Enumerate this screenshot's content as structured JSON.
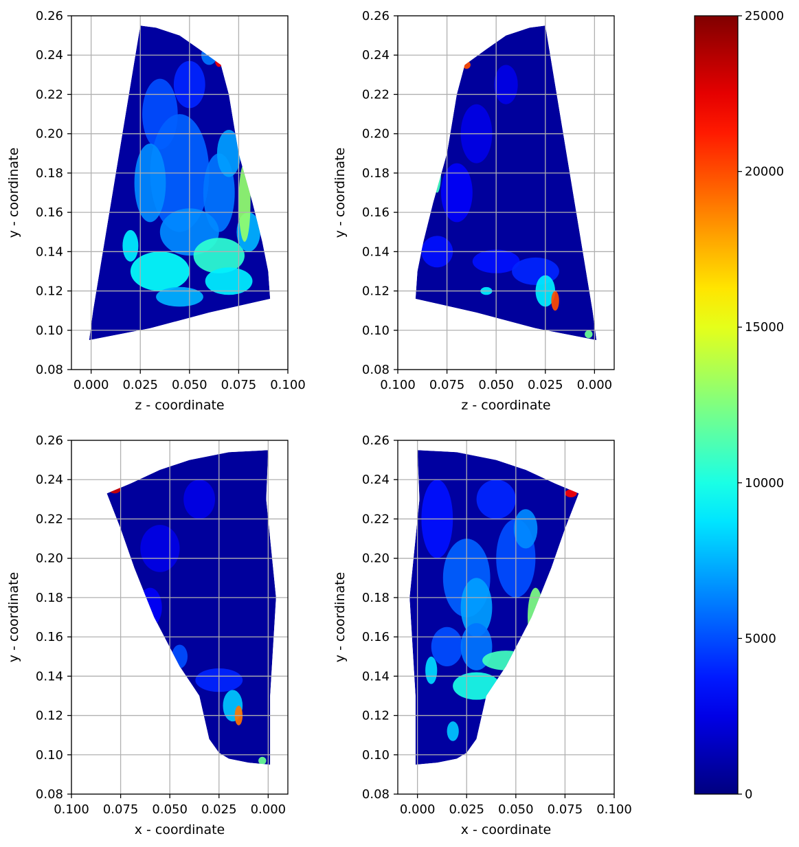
{
  "chart_data": [
    {
      "type": "heatmap",
      "panel": "top-left",
      "xlabel": "z - coordinate",
      "ylabel": "y - coordinate",
      "xlim": [
        -0.01,
        0.1
      ],
      "ylim": [
        0.08,
        0.26
      ],
      "x_ticks": [
        "0.000",
        "0.025",
        "0.050",
        "0.075",
        "0.100"
      ],
      "x_tick_values": [
        0.0,
        0.025,
        0.05,
        0.075,
        0.1
      ],
      "y_ticks": [
        "0.08",
        "0.10",
        "0.12",
        "0.14",
        "0.16",
        "0.18",
        "0.20",
        "0.22",
        "0.24",
        "0.26"
      ],
      "y_tick_values": [
        0.08,
        0.1,
        0.12,
        0.14,
        0.16,
        0.18,
        0.2,
        0.22,
        0.24,
        0.26
      ],
      "grid": true,
      "outline": [
        [
          -0.001,
          0.095
        ],
        [
          0.001,
          0.11
        ],
        [
          0.025,
          0.255
        ],
        [
          0.033,
          0.254
        ],
        [
          0.045,
          0.25
        ],
        [
          0.055,
          0.243
        ],
        [
          0.066,
          0.235
        ],
        [
          0.07,
          0.22
        ],
        [
          0.075,
          0.19
        ],
        [
          0.082,
          0.165
        ],
        [
          0.087,
          0.145
        ],
        [
          0.09,
          0.13
        ],
        [
          0.091,
          0.116
        ],
        [
          0.06,
          0.109
        ],
        [
          0.03,
          0.101
        ],
        [
          -0.001,
          0.095
        ]
      ],
      "background_value": 800,
      "regions": [
        {
          "cx": 0.035,
          "cy": 0.21,
          "rx": 0.009,
          "ry": 0.018,
          "value": 5000
        },
        {
          "cx": 0.05,
          "cy": 0.225,
          "rx": 0.008,
          "ry": 0.012,
          "value": 4000
        },
        {
          "cx": 0.045,
          "cy": 0.18,
          "rx": 0.015,
          "ry": 0.03,
          "value": 5500
        },
        {
          "cx": 0.03,
          "cy": 0.175,
          "rx": 0.008,
          "ry": 0.02,
          "value": 6500
        },
        {
          "cx": 0.065,
          "cy": 0.17,
          "rx": 0.008,
          "ry": 0.02,
          "value": 6000
        },
        {
          "cx": 0.07,
          "cy": 0.19,
          "rx": 0.006,
          "ry": 0.012,
          "value": 7000
        },
        {
          "cx": 0.05,
          "cy": 0.15,
          "rx": 0.015,
          "ry": 0.012,
          "value": 6500
        },
        {
          "cx": 0.02,
          "cy": 0.143,
          "rx": 0.004,
          "ry": 0.008,
          "value": 9000
        },
        {
          "cx": 0.035,
          "cy": 0.13,
          "rx": 0.015,
          "ry": 0.01,
          "value": 9500
        },
        {
          "cx": 0.065,
          "cy": 0.138,
          "rx": 0.013,
          "ry": 0.009,
          "value": 10500
        },
        {
          "cx": 0.07,
          "cy": 0.125,
          "rx": 0.012,
          "ry": 0.007,
          "value": 9000
        },
        {
          "cx": 0.045,
          "cy": 0.117,
          "rx": 0.012,
          "ry": 0.005,
          "value": 7500
        },
        {
          "cx": 0.08,
          "cy": 0.15,
          "rx": 0.006,
          "ry": 0.01,
          "value": 7500
        },
        {
          "cx": 0.078,
          "cy": 0.165,
          "rx": 0.003,
          "ry": 0.02,
          "value": 13000
        },
        {
          "cx": 0.065,
          "cy": 0.237,
          "rx": 0.002,
          "ry": 0.003,
          "value": 22000
        },
        {
          "cx": 0.06,
          "cy": 0.24,
          "rx": 0.004,
          "ry": 0.005,
          "value": 6000
        }
      ]
    },
    {
      "type": "heatmap",
      "panel": "top-right",
      "xlabel": "z - coordinate",
      "ylabel": "y - coordinate",
      "xlim": [
        0.1,
        -0.01
      ],
      "ylim": [
        0.08,
        0.26
      ],
      "x_ticks": [
        "0.100",
        "0.075",
        "0.050",
        "0.025",
        "0.000"
      ],
      "x_tick_values": [
        0.1,
        0.075,
        0.05,
        0.025,
        0.0
      ],
      "y_ticks": [
        "0.08",
        "0.10",
        "0.12",
        "0.14",
        "0.16",
        "0.18",
        "0.20",
        "0.22",
        "0.24",
        "0.26"
      ],
      "y_tick_values": [
        0.08,
        0.1,
        0.12,
        0.14,
        0.16,
        0.18,
        0.2,
        0.22,
        0.24,
        0.26
      ],
      "grid": true,
      "outline": [
        [
          -0.001,
          0.095
        ],
        [
          0.001,
          0.11
        ],
        [
          0.025,
          0.255
        ],
        [
          0.033,
          0.254
        ],
        [
          0.045,
          0.25
        ],
        [
          0.055,
          0.243
        ],
        [
          0.066,
          0.235
        ],
        [
          0.07,
          0.22
        ],
        [
          0.075,
          0.19
        ],
        [
          0.082,
          0.165
        ],
        [
          0.087,
          0.145
        ],
        [
          0.09,
          0.13
        ],
        [
          0.091,
          0.116
        ],
        [
          0.06,
          0.109
        ],
        [
          0.03,
          0.101
        ],
        [
          -0.001,
          0.095
        ]
      ],
      "background_value": 700,
      "regions": [
        {
          "cx": 0.06,
          "cy": 0.2,
          "rx": 0.008,
          "ry": 0.015,
          "value": 2500
        },
        {
          "cx": 0.07,
          "cy": 0.17,
          "rx": 0.008,
          "ry": 0.015,
          "value": 3000
        },
        {
          "cx": 0.08,
          "cy": 0.14,
          "rx": 0.008,
          "ry": 0.008,
          "value": 3500
        },
        {
          "cx": 0.05,
          "cy": 0.135,
          "rx": 0.012,
          "ry": 0.006,
          "value": 3500
        },
        {
          "cx": 0.03,
          "cy": 0.13,
          "rx": 0.012,
          "ry": 0.007,
          "value": 4000
        },
        {
          "cx": 0.025,
          "cy": 0.12,
          "rx": 0.005,
          "ry": 0.008,
          "value": 9000
        },
        {
          "cx": 0.02,
          "cy": 0.115,
          "rx": 0.002,
          "ry": 0.005,
          "value": 20000
        },
        {
          "cx": 0.055,
          "cy": 0.12,
          "rx": 0.003,
          "ry": 0.002,
          "value": 9000
        },
        {
          "cx": 0.08,
          "cy": 0.18,
          "rx": 0.002,
          "ry": 0.01,
          "value": 11000
        },
        {
          "cx": 0.003,
          "cy": 0.098,
          "rx": 0.002,
          "ry": 0.002,
          "value": 12000
        },
        {
          "cx": 0.065,
          "cy": 0.235,
          "rx": 0.002,
          "ry": 0.002,
          "value": 20000
        },
        {
          "cx": 0.045,
          "cy": 0.225,
          "rx": 0.006,
          "ry": 0.01,
          "value": 2500
        }
      ]
    },
    {
      "type": "heatmap",
      "panel": "bottom-left",
      "xlabel": "x - coordinate",
      "ylabel": "y - coordinate",
      "xlim": [
        0.1,
        -0.01
      ],
      "ylim": [
        0.08,
        0.26
      ],
      "x_ticks": [
        "0.100",
        "0.075",
        "0.050",
        "0.025",
        "0.000"
      ],
      "x_tick_values": [
        0.1,
        0.075,
        0.05,
        0.025,
        0.0
      ],
      "y_ticks": [
        "0.08",
        "0.10",
        "0.12",
        "0.14",
        "0.16",
        "0.18",
        "0.20",
        "0.22",
        "0.24",
        "0.26"
      ],
      "y_tick_values": [
        0.08,
        0.1,
        0.12,
        0.14,
        0.16,
        0.18,
        0.2,
        0.22,
        0.24,
        0.26
      ],
      "grid": true,
      "outline": [
        [
          0.0,
          0.255
        ],
        [
          0.001,
          0.23
        ],
        [
          -0.004,
          0.18
        ],
        [
          -0.001,
          0.13
        ],
        [
          -0.001,
          0.095
        ],
        [
          0.01,
          0.096
        ],
        [
          0.02,
          0.098
        ],
        [
          0.025,
          0.101
        ],
        [
          0.03,
          0.108
        ],
        [
          0.035,
          0.13
        ],
        [
          0.045,
          0.145
        ],
        [
          0.058,
          0.17
        ],
        [
          0.068,
          0.195
        ],
        [
          0.075,
          0.215
        ],
        [
          0.082,
          0.233
        ],
        [
          0.07,
          0.238
        ],
        [
          0.055,
          0.245
        ],
        [
          0.04,
          0.25
        ],
        [
          0.02,
          0.254
        ],
        [
          0.0,
          0.255
        ]
      ],
      "background_value": 700,
      "regions": [
        {
          "cx": 0.055,
          "cy": 0.205,
          "rx": 0.01,
          "ry": 0.012,
          "value": 2500
        },
        {
          "cx": 0.035,
          "cy": 0.23,
          "rx": 0.008,
          "ry": 0.01,
          "value": 2500
        },
        {
          "cx": 0.06,
          "cy": 0.175,
          "rx": 0.006,
          "ry": 0.01,
          "value": 3000
        },
        {
          "cx": 0.025,
          "cy": 0.138,
          "rx": 0.012,
          "ry": 0.006,
          "value": 4000
        },
        {
          "cx": 0.018,
          "cy": 0.125,
          "rx": 0.005,
          "ry": 0.008,
          "value": 8000
        },
        {
          "cx": 0.015,
          "cy": 0.12,
          "rx": 0.002,
          "ry": 0.005,
          "value": 19000
        },
        {
          "cx": 0.078,
          "cy": 0.235,
          "rx": 0.003,
          "ry": 0.002,
          "value": 23000
        },
        {
          "cx": 0.003,
          "cy": 0.097,
          "rx": 0.002,
          "ry": 0.002,
          "value": 12000
        },
        {
          "cx": 0.045,
          "cy": 0.15,
          "rx": 0.004,
          "ry": 0.006,
          "value": 5000
        }
      ]
    },
    {
      "type": "heatmap",
      "panel": "bottom-right",
      "xlabel": "x - coordinate",
      "ylabel": "y - coordinate",
      "xlim": [
        -0.01,
        0.1
      ],
      "ylim": [
        0.08,
        0.26
      ],
      "x_ticks": [
        "0.000",
        "0.025",
        "0.050",
        "0.075",
        "0.100"
      ],
      "x_tick_values": [
        0.0,
        0.025,
        0.05,
        0.075,
        0.1
      ],
      "y_ticks": [
        "0.08",
        "0.10",
        "0.12",
        "0.14",
        "0.16",
        "0.18",
        "0.20",
        "0.22",
        "0.24",
        "0.26"
      ],
      "y_tick_values": [
        0.08,
        0.1,
        0.12,
        0.14,
        0.16,
        0.18,
        0.2,
        0.22,
        0.24,
        0.26
      ],
      "grid": true,
      "outline": [
        [
          0.0,
          0.255
        ],
        [
          0.001,
          0.23
        ],
        [
          -0.004,
          0.18
        ],
        [
          -0.001,
          0.13
        ],
        [
          -0.001,
          0.095
        ],
        [
          0.01,
          0.096
        ],
        [
          0.02,
          0.098
        ],
        [
          0.025,
          0.101
        ],
        [
          0.03,
          0.108
        ],
        [
          0.035,
          0.13
        ],
        [
          0.045,
          0.145
        ],
        [
          0.058,
          0.17
        ],
        [
          0.068,
          0.195
        ],
        [
          0.075,
          0.215
        ],
        [
          0.082,
          0.233
        ],
        [
          0.07,
          0.238
        ],
        [
          0.055,
          0.245
        ],
        [
          0.04,
          0.25
        ],
        [
          0.02,
          0.254
        ],
        [
          0.0,
          0.255
        ]
      ],
      "background_value": 800,
      "regions": [
        {
          "cx": 0.01,
          "cy": 0.22,
          "rx": 0.008,
          "ry": 0.02,
          "value": 3500
        },
        {
          "cx": 0.04,
          "cy": 0.23,
          "rx": 0.01,
          "ry": 0.01,
          "value": 4000
        },
        {
          "cx": 0.025,
          "cy": 0.19,
          "rx": 0.012,
          "ry": 0.02,
          "value": 5500
        },
        {
          "cx": 0.05,
          "cy": 0.2,
          "rx": 0.01,
          "ry": 0.02,
          "value": 5000
        },
        {
          "cx": 0.03,
          "cy": 0.175,
          "rx": 0.008,
          "ry": 0.015,
          "value": 7000
        },
        {
          "cx": 0.055,
          "cy": 0.215,
          "rx": 0.006,
          "ry": 0.01,
          "value": 6500
        },
        {
          "cx": 0.015,
          "cy": 0.155,
          "rx": 0.008,
          "ry": 0.01,
          "value": 5000
        },
        {
          "cx": 0.03,
          "cy": 0.155,
          "rx": 0.008,
          "ry": 0.012,
          "value": 6000
        },
        {
          "cx": 0.03,
          "cy": 0.135,
          "rx": 0.012,
          "ry": 0.007,
          "value": 10000
        },
        {
          "cx": 0.045,
          "cy": 0.148,
          "rx": 0.012,
          "ry": 0.005,
          "value": 11000
        },
        {
          "cx": 0.007,
          "cy": 0.143,
          "rx": 0.003,
          "ry": 0.007,
          "value": 8500
        },
        {
          "cx": 0.018,
          "cy": 0.112,
          "rx": 0.003,
          "ry": 0.005,
          "value": 8000
        },
        {
          "cx": 0.06,
          "cy": 0.17,
          "rx": 0.004,
          "ry": 0.015,
          "value": 12500
        },
        {
          "cx": 0.078,
          "cy": 0.233,
          "rx": 0.003,
          "ry": 0.002,
          "value": 22000
        }
      ]
    }
  ],
  "colorbar": {
    "colormap": "jet",
    "vmin": 0,
    "vmax": 25000,
    "ticks": [
      "0",
      "5000",
      "10000",
      "15000",
      "20000",
      "25000"
    ],
    "tick_values": [
      0,
      5000,
      10000,
      15000,
      20000,
      25000
    ]
  }
}
